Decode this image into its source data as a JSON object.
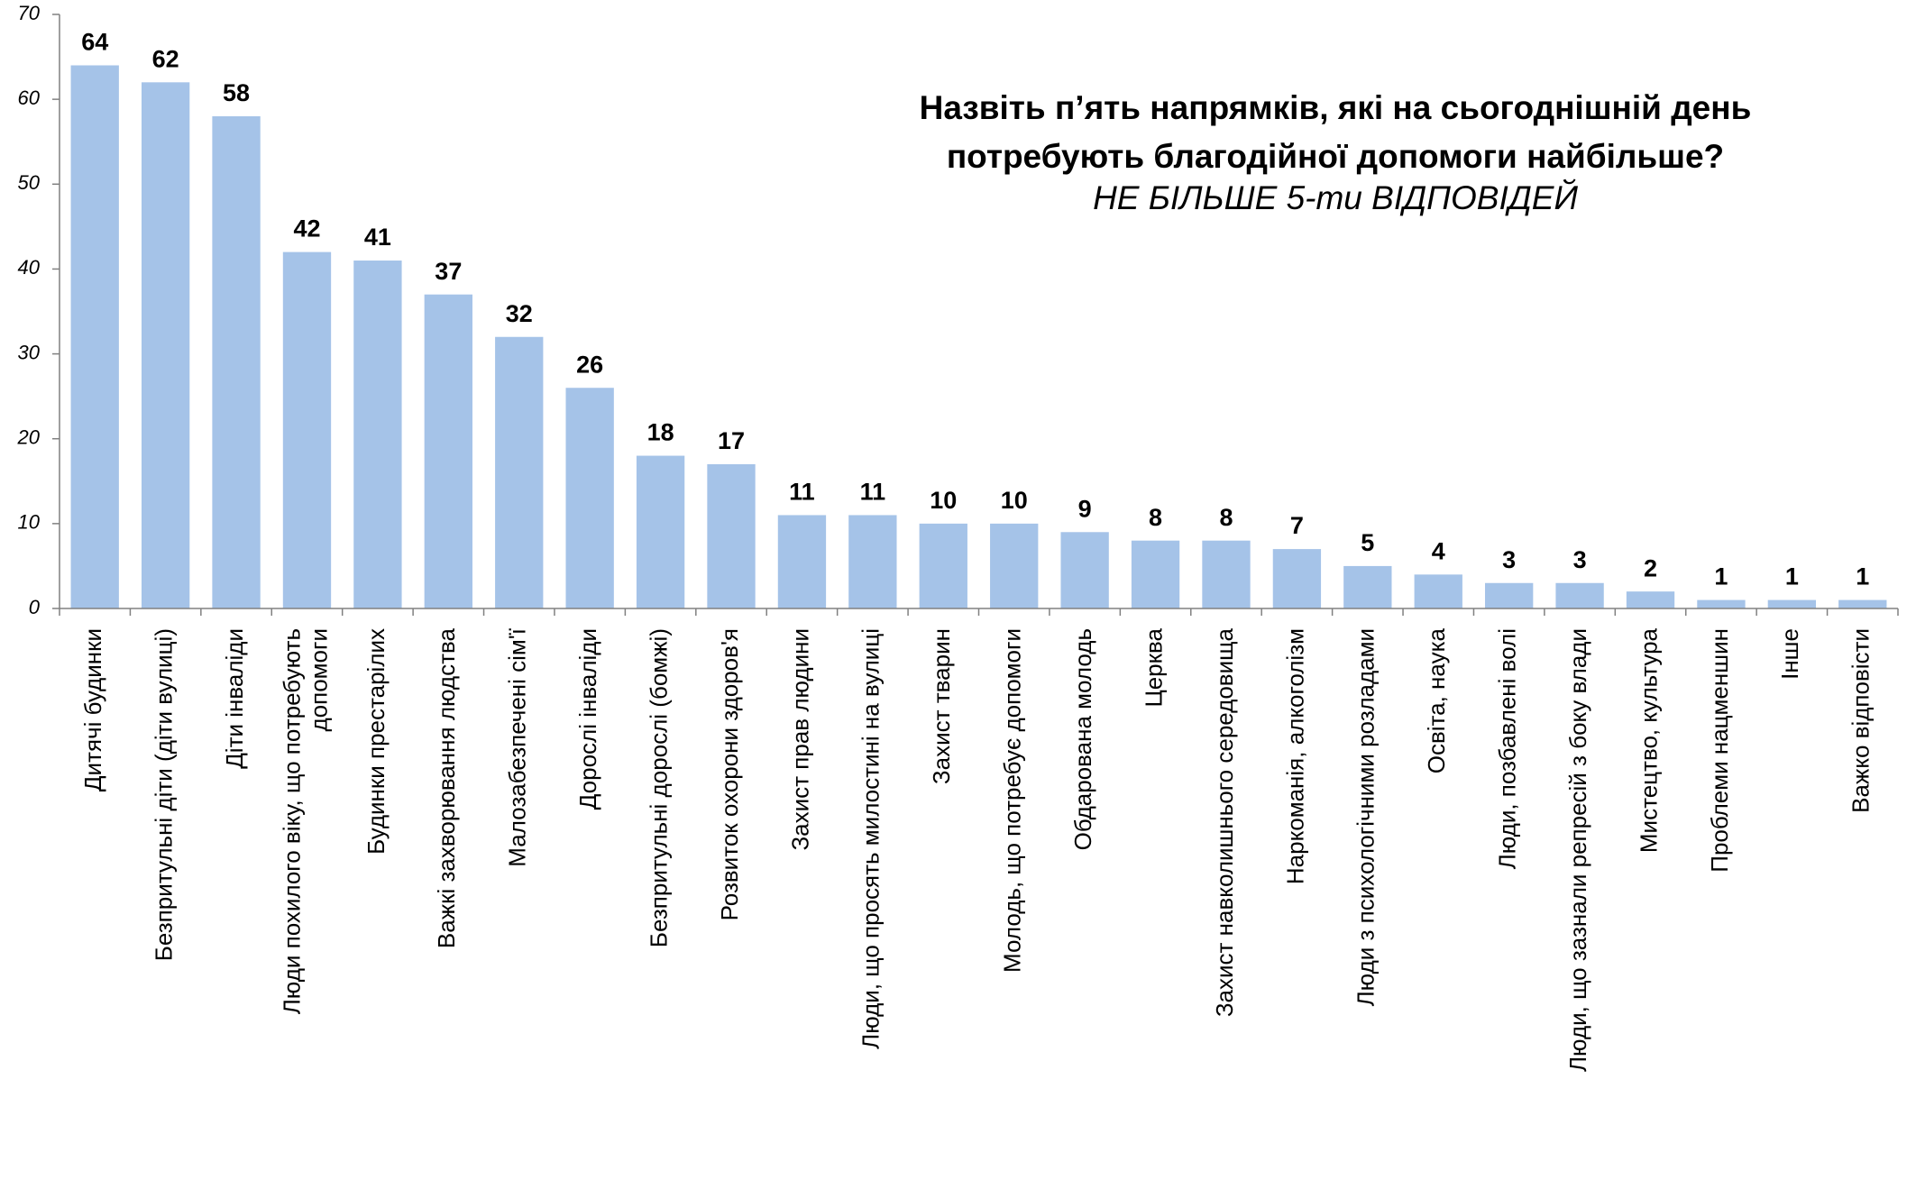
{
  "chart_data": {
    "type": "bar",
    "title": [
      "Назвіть п’ять напрямків, які на сьогоднішній день",
      "потребують благодійної допомоги найбільше?"
    ],
    "subtitle": "НЕ БІЛЬШЕ 5-ти ВІДПОВІДЕЙ",
    "categories": [
      "Дитячі будинки",
      "Безпритульні діти (діти вулиці)",
      "Діти інваліди",
      "Люди похилого віку, що потребують допомоги",
      "Будинки престарілих",
      "Важкі захворювання людства",
      "Малозабезпечені сім'ї",
      "Дорослі інваліди",
      "Безпритульні дорослі (бомжі)",
      "Розвиток охорони здоров'я",
      "Захист прав людини",
      "Люди, що просять милостині на вулиці",
      "Захист тварин",
      "Молодь, що потребує допомоги",
      "Обдарована молодь",
      "Церква",
      "Захист навколишнього середовища",
      "Наркоманія, алкоголізм",
      "Люди з психологічними розладами",
      "Освіта, наука",
      "Люди, позбавлені волі",
      "Люди, що зазнали репресій з боку влади",
      "Мистецтво, культура",
      "Проблеми нацменшин",
      "Інше",
      "Важко відповісти"
    ],
    "values": [
      64,
      62,
      58,
      42,
      41,
      37,
      32,
      26,
      18,
      17,
      11,
      11,
      10,
      10,
      9,
      8,
      8,
      7,
      5,
      4,
      3,
      3,
      2,
      1,
      1,
      1
    ],
    "color": "#a5c3e8",
    "ylim": [
      0,
      70
    ],
    "yticks": [
      0,
      10,
      20,
      30,
      40,
      50,
      60,
      70
    ],
    "grid": false
  }
}
